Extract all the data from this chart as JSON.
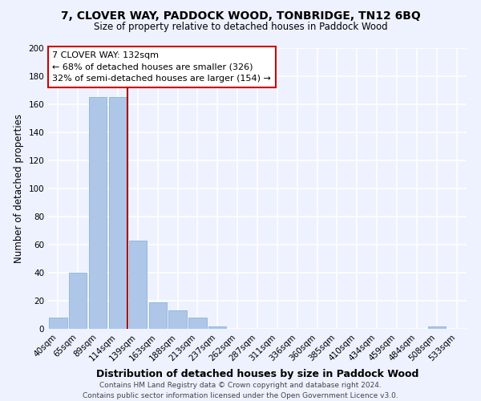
{
  "title": "7, CLOVER WAY, PADDOCK WOOD, TONBRIDGE, TN12 6BQ",
  "subtitle": "Size of property relative to detached houses in Paddock Wood",
  "xlabel": "Distribution of detached houses by size in Paddock Wood",
  "ylabel": "Number of detached properties",
  "bar_labels": [
    "40sqm",
    "65sqm",
    "89sqm",
    "114sqm",
    "139sqm",
    "163sqm",
    "188sqm",
    "213sqm",
    "237sqm",
    "262sqm",
    "287sqm",
    "311sqm",
    "336sqm",
    "360sqm",
    "385sqm",
    "410sqm",
    "434sqm",
    "459sqm",
    "484sqm",
    "508sqm",
    "533sqm"
  ],
  "bar_values": [
    8,
    40,
    165,
    165,
    63,
    19,
    13,
    8,
    2,
    0,
    0,
    0,
    0,
    0,
    0,
    0,
    0,
    0,
    0,
    2,
    0
  ],
  "bar_color": "#aec6e8",
  "bar_edge_color": "#7aadd4",
  "vline_color": "#aa0000",
  "ylim": [
    0,
    200
  ],
  "yticks": [
    0,
    20,
    40,
    60,
    80,
    100,
    120,
    140,
    160,
    180,
    200
  ],
  "annotation_title": "7 CLOVER WAY: 132sqm",
  "annotation_line1": "← 68% of detached houses are smaller (326)",
  "annotation_line2": "32% of semi-detached houses are larger (154) →",
  "annotation_box_color": "#ffffff",
  "annotation_box_edge": "#cc0000",
  "footer1": "Contains HM Land Registry data © Crown copyright and database right 2024.",
  "footer2": "Contains public sector information licensed under the Open Government Licence v3.0.",
  "bg_color": "#eef2ff"
}
